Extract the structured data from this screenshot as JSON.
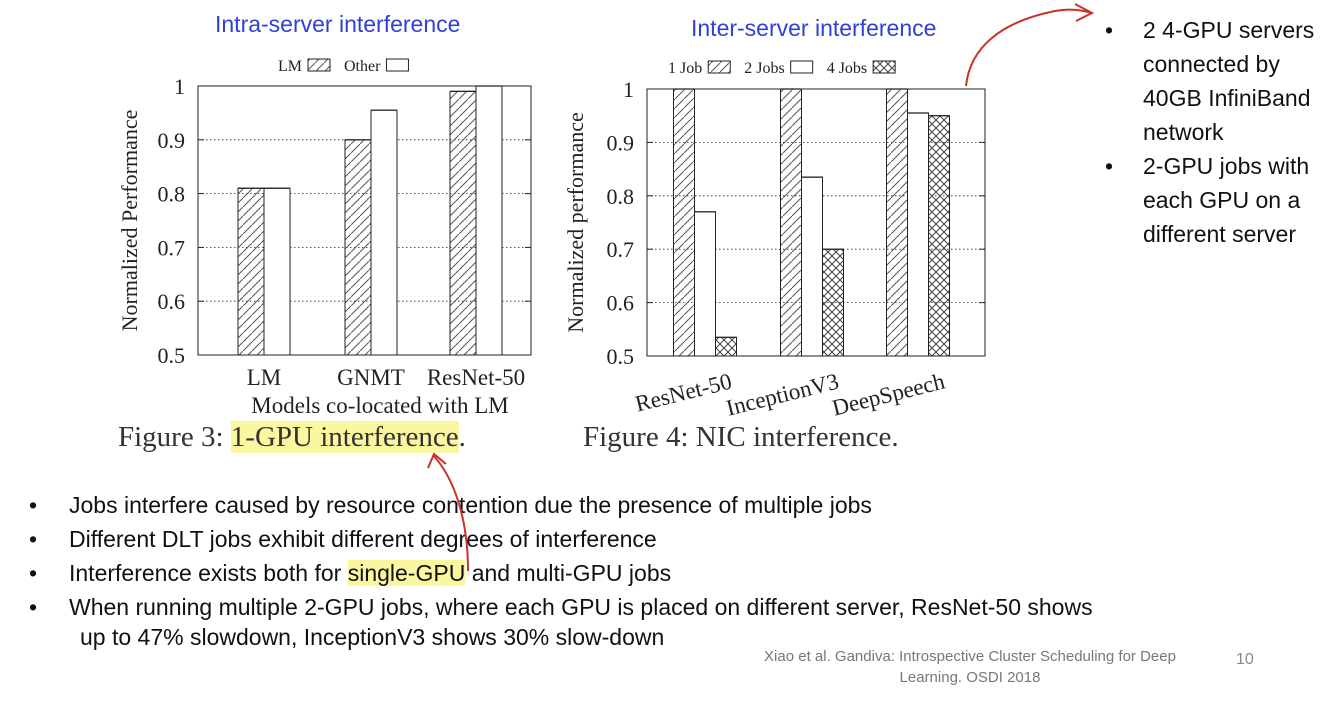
{
  "titles": {
    "intra": "Intra-server interference",
    "inter": "Inter-server interference"
  },
  "chart_data": [
    {
      "type": "bar",
      "title": "",
      "xlabel": "Models co-located with LM",
      "ylabel": "Normalized Performance",
      "ylim": [
        0.5,
        1.0
      ],
      "yticks": [
        "0.5",
        "0.6",
        "0.7",
        "0.8",
        "0.9",
        "1"
      ],
      "categories": [
        "LM",
        "GNMT",
        "ResNet-50"
      ],
      "legend_position": "top",
      "series": [
        {
          "name": "LM",
          "pattern": "hatch",
          "values": [
            0.81,
            0.9,
            0.99
          ]
        },
        {
          "name": "Other",
          "pattern": "plain",
          "values": [
            0.81,
            0.955,
            1.0
          ]
        }
      ],
      "caption": {
        "prefix": "Figure 3: ",
        "highlight": "1-GPU interference",
        "suffix": "."
      }
    },
    {
      "type": "bar",
      "title": "",
      "xlabel": "",
      "ylabel": "Normalized performance",
      "ylim": [
        0.5,
        1.0
      ],
      "yticks": [
        "0.5",
        "0.6",
        "0.7",
        "0.8",
        "0.9",
        "1"
      ],
      "categories": [
        "ResNet-50",
        "InceptionV3",
        "DeepSpeech"
      ],
      "legend_position": "top",
      "series": [
        {
          "name": "1 Job",
          "pattern": "hatch",
          "values": [
            1.0,
            1.0,
            1.0
          ]
        },
        {
          "name": "2 Jobs",
          "pattern": "plain",
          "values": [
            0.77,
            0.835,
            0.955
          ]
        },
        {
          "name": "4 Jobs",
          "pattern": "crosshatch",
          "values": [
            0.535,
            0.7,
            0.95
          ]
        }
      ],
      "caption": {
        "prefix": "Figure 4: NIC interference.",
        "highlight": "",
        "suffix": ""
      }
    }
  ],
  "side_notes": [
    "2  4-GPU servers connected by 40GB InfiniBand network",
    "2-GPU jobs with each GPU on a different server"
  ],
  "bullets": {
    "b1": "Jobs interfere caused by resource contention due the presence of multiple jobs",
    "b2": "Different DLT jobs exhibit different degrees of interference",
    "b3_before": "Interference exists both for ",
    "b3_highlight": "single-GPU",
    "b3_after": " and multi-GPU jobs",
    "b4_line1": "When running multiple 2-GPU jobs, where each GPU is placed on different server, ResNet-50 shows",
    "b4_line2": "up to 47% slowdown, InceptionV3 shows 30% slow-down"
  },
  "bullet_symbol": "•",
  "citation": {
    "line1": "Xiao et al. Gandiva: Introspective Cluster Scheduling for Deep",
    "line2": "Learning. OSDI 2018"
  },
  "page_number": "10",
  "colors": {
    "title_blue": "#2f3fd9",
    "highlight_yellow": "#fbf6a0",
    "annotation_red": "#c8322b"
  }
}
